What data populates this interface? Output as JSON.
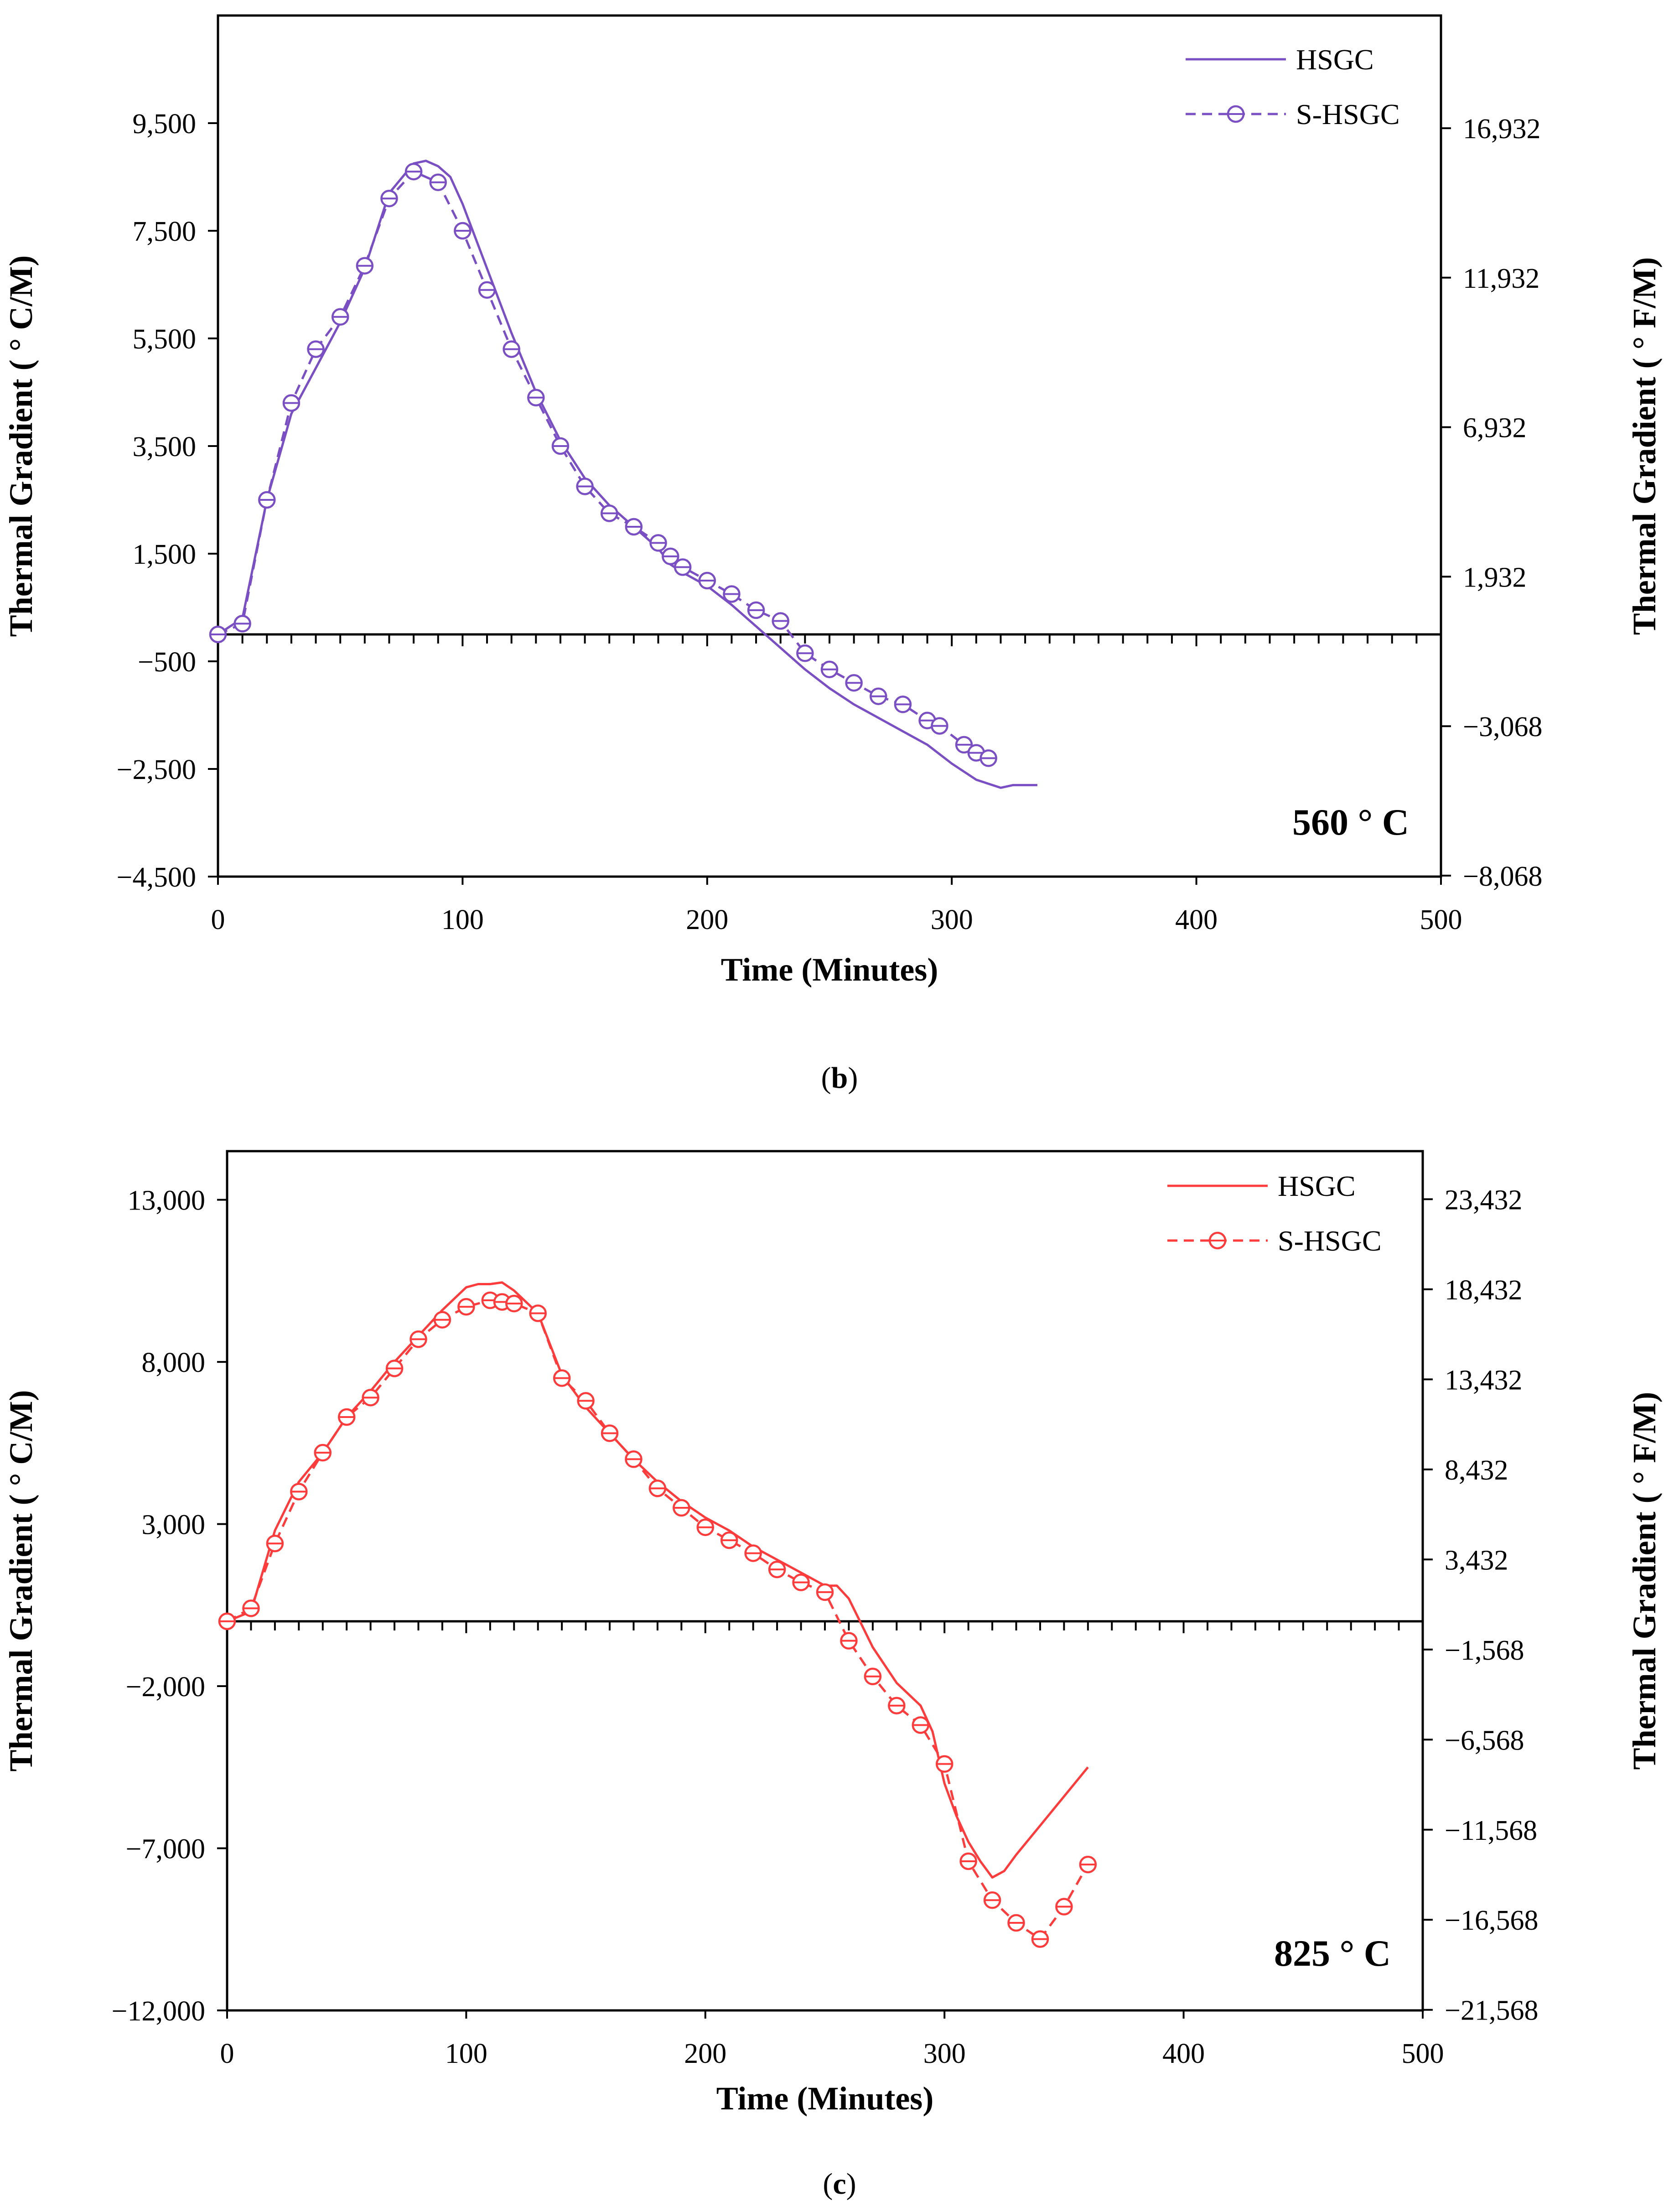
{
  "chart_data": [
    {
      "type": "line",
      "panel": "b",
      "color": "#7B4FC4",
      "caption_letter": "b",
      "annotation": "560 ° C",
      "xlabel": "Time (Minutes)",
      "ylabel": "Thermal Gradient ( ° C/M)",
      "ylabel_right": "Thermal Gradient ( ° F/M)",
      "xlim": [
        0,
        500
      ],
      "ylim": [
        -4500,
        11500
      ],
      "x_ticks": [
        0,
        100,
        200,
        300,
        400,
        500
      ],
      "x_tick_labels": [
        "0",
        "100",
        "200",
        "300",
        "400",
        "500"
      ],
      "y_ticks": [
        9500,
        7500,
        5500,
        3500,
        1500,
        -500,
        -2500,
        -4500
      ],
      "y_tick_labels": [
        "9,500",
        "7,500",
        "5,500",
        "3,500",
        "1,500",
        "−500",
        "−2,500",
        "−4,500"
      ],
      "y_right_ticks": [
        9406,
        6629,
        3851,
        1073,
        -1705,
        -4482
      ],
      "y_right_tick_labels": [
        "16,932",
        "11,932",
        "6,932",
        "1,932",
        "−3,068",
        "−8,068"
      ],
      "legend": [
        "HSGC",
        "S-HSGC"
      ],
      "series": [
        {
          "name": "HSGC",
          "style": "solid",
          "x": [
            0,
            10,
            20,
            30,
            40,
            50,
            60,
            70,
            80,
            85,
            90,
            95,
            100,
            110,
            120,
            130,
            140,
            150,
            160,
            170,
            180,
            185,
            190,
            200,
            210,
            220,
            230,
            240,
            250,
            260,
            270,
            280,
            290,
            300,
            310,
            320,
            325,
            335
          ],
          "y": [
            0,
            300,
            2500,
            4100,
            4950,
            5800,
            6800,
            8200,
            8750,
            8800,
            8700,
            8500,
            8000,
            6800,
            5600,
            4500,
            3600,
            2900,
            2400,
            2000,
            1600,
            1300,
            1150,
            900,
            550,
            150,
            -250,
            -650,
            -1000,
            -1300,
            -1550,
            -1800,
            -2050,
            -2400,
            -2700,
            -2850,
            -2800,
            -2800
          ]
        },
        {
          "name": "S-HSGC",
          "style": "dashed",
          "x": [
            0,
            10,
            20,
            30,
            40,
            50,
            60,
            70,
            80,
            90,
            100,
            110,
            120,
            130,
            140,
            150,
            160,
            170,
            180,
            185,
            190,
            200,
            210,
            220,
            230,
            240,
            250,
            260,
            270,
            280,
            290,
            295,
            305,
            310,
            315
          ],
          "y": [
            0,
            200,
            2500,
            4300,
            5300,
            5900,
            6850,
            8100,
            8600,
            8400,
            7500,
            6400,
            5300,
            4400,
            3500,
            2750,
            2250,
            2000,
            1700,
            1450,
            1250,
            1000,
            750,
            450,
            250,
            -350,
            -650,
            -900,
            -1150,
            -1300,
            -1600,
            -1700,
            -2050,
            -2200,
            -2300
          ]
        }
      ]
    },
    {
      "type": "line",
      "panel": "c",
      "color": "#FF3B3B",
      "caption_letter": "c",
      "annotation": "825 ° C",
      "xlabel": "Time (Minutes)",
      "ylabel": "Thermal Gradient ( ° C/M)",
      "ylabel_right": "Thermal Gradient ( ° F/M)",
      "xlim": [
        0,
        500
      ],
      "ylim": [
        -12000,
        14500
      ],
      "x_ticks": [
        0,
        100,
        200,
        300,
        400,
        500
      ],
      "x_tick_labels": [
        "0",
        "100",
        "200",
        "300",
        "400",
        "500"
      ],
      "y_ticks": [
        13000,
        8000,
        3000,
        -2000,
        -7000,
        -12000
      ],
      "y_tick_labels": [
        "13,000",
        "8,000",
        "3,000",
        "−2,000",
        "−7,000",
        "−12,000"
      ],
      "y_right_ticks": [
        13018,
        10240,
        7462,
        4684,
        1907,
        -871,
        -3649,
        -6427,
        -9204,
        -11982
      ],
      "y_right_tick_labels": [
        "23,432",
        "18,432",
        "13,432",
        "8,432",
        "3,432",
        "−1,568",
        "−6,568",
        "−11,568",
        "−16,568",
        "−21,568"
      ],
      "legend": [
        "HSGC",
        "S-HSGC"
      ],
      "series": [
        {
          "name": "HSGC",
          "style": "solid",
          "x": [
            0,
            10,
            20,
            30,
            40,
            50,
            60,
            70,
            80,
            90,
            100,
            105,
            110,
            115,
            120,
            130,
            140,
            150,
            160,
            170,
            180,
            190,
            200,
            210,
            220,
            230,
            240,
            250,
            255,
            260,
            270,
            280,
            290,
            295,
            300,
            305,
            310,
            315,
            320,
            325,
            330,
            340,
            350,
            360
          ],
          "y": [
            0,
            300,
            2800,
            4300,
            5200,
            6300,
            7100,
            8000,
            8800,
            9600,
            10300,
            10400,
            10400,
            10450,
            10200,
            9500,
            7600,
            6600,
            5800,
            5000,
            4300,
            3700,
            3200,
            2800,
            2300,
            1900,
            1500,
            1100,
            1100,
            700,
            -800,
            -1900,
            -2600,
            -3400,
            -5000,
            -6000,
            -6800,
            -7400,
            -7900,
            -7700,
            -7200,
            -6300,
            -5400,
            -4500
          ]
        },
        {
          "name": "S-HSGC",
          "style": "dashed",
          "x": [
            0,
            10,
            20,
            30,
            40,
            50,
            60,
            70,
            80,
            90,
            100,
            110,
            115,
            120,
            130,
            140,
            150,
            160,
            170,
            180,
            190,
            200,
            210,
            220,
            230,
            240,
            250,
            260,
            270,
            280,
            290,
            300,
            310,
            320,
            330,
            340,
            350,
            360
          ],
          "y": [
            0,
            400,
            2400,
            4000,
            5200,
            6300,
            6900,
            7800,
            8700,
            9300,
            9700,
            9900,
            9850,
            9800,
            9500,
            7500,
            6800,
            5800,
            5000,
            4100,
            3500,
            2900,
            2500,
            2100,
            1600,
            1200,
            900,
            -600,
            -1700,
            -2600,
            -3200,
            -4400,
            -7400,
            -8600,
            -9300,
            -9800,
            -8800,
            -7500
          ]
        }
      ]
    }
  ]
}
